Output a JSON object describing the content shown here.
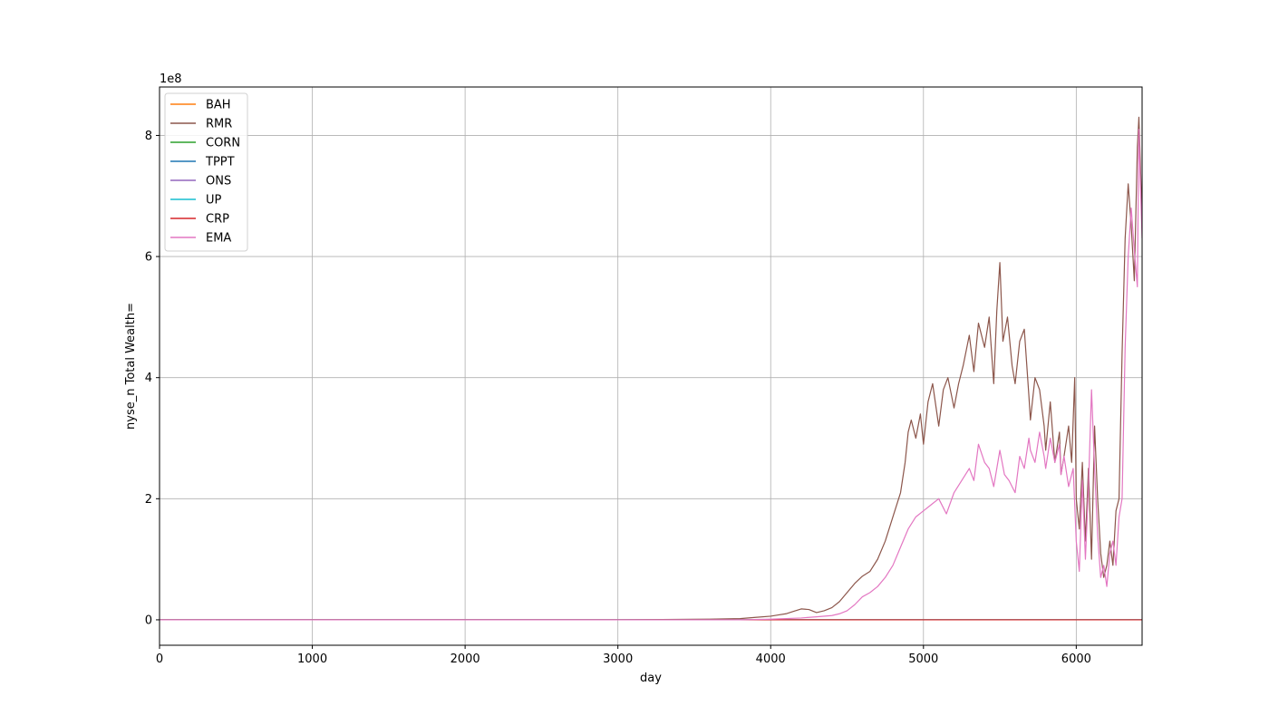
{
  "chart_data": {
    "type": "line",
    "title": "",
    "xlabel": "day",
    "ylabel": "nyse_n Total Wealth=",
    "y_multiplier_label": "1e8",
    "xlim": [
      0,
      6431
    ],
    "ylim": [
      -0.42,
      8.8
    ],
    "x_ticks": [
      0,
      1000,
      2000,
      3000,
      4000,
      5000,
      6000
    ],
    "y_ticks": [
      0,
      2,
      4,
      6,
      8
    ],
    "grid": true,
    "legend_position": "upper-left",
    "series": [
      {
        "name": "BAH",
        "color": "#ff7f0e",
        "x": [
          0,
          6431
        ],
        "y": [
          0,
          0
        ]
      },
      {
        "name": "RMR",
        "color": "#8c564b",
        "x": [
          0,
          1000,
          2000,
          3000,
          3600,
          3800,
          3900,
          4000,
          4050,
          4100,
          4150,
          4200,
          4250,
          4300,
          4350,
          4400,
          4450,
          4500,
          4550,
          4600,
          4650,
          4700,
          4750,
          4800,
          4850,
          4880,
          4900,
          4920,
          4950,
          4980,
          5000,
          5030,
          5060,
          5100,
          5130,
          5160,
          5200,
          5230,
          5260,
          5300,
          5330,
          5360,
          5400,
          5430,
          5460,
          5480,
          5500,
          5520,
          5550,
          5580,
          5600,
          5630,
          5660,
          5690,
          5700,
          5730,
          5760,
          5790,
          5800,
          5830,
          5860,
          5890,
          5900,
          5920,
          5950,
          5970,
          5990,
          6000,
          6020,
          6040,
          6060,
          6080,
          6100,
          6120,
          6140,
          6160,
          6180,
          6200,
          6220,
          6240,
          6260,
          6280,
          6300,
          6320,
          6340,
          6360,
          6380,
          6400,
          6410,
          6420,
          6431
        ],
        "y": [
          0,
          0,
          0,
          0,
          0.01,
          0.02,
          0.04,
          0.06,
          0.08,
          0.1,
          0.14,
          0.18,
          0.17,
          0.12,
          0.15,
          0.2,
          0.3,
          0.45,
          0.6,
          0.72,
          0.8,
          1.0,
          1.3,
          1.7,
          2.1,
          2.6,
          3.1,
          3.3,
          3.0,
          3.4,
          2.9,
          3.6,
          3.9,
          3.2,
          3.8,
          4.0,
          3.5,
          3.9,
          4.2,
          4.7,
          4.1,
          4.9,
          4.5,
          5.0,
          3.9,
          5.1,
          5.9,
          4.6,
          5.0,
          4.2,
          3.9,
          4.6,
          4.8,
          3.7,
          3.3,
          4.0,
          3.8,
          3.2,
          2.8,
          3.6,
          2.6,
          3.1,
          2.4,
          2.7,
          3.2,
          2.6,
          4.0,
          2.0,
          1.5,
          2.6,
          1.3,
          2.5,
          1.0,
          3.2,
          2.0,
          1.1,
          0.7,
          0.9,
          1.3,
          0.9,
          1.8,
          2.0,
          4.4,
          6.3,
          7.2,
          6.5,
          5.6,
          7.8,
          8.3,
          7.5,
          6.6
        ]
      },
      {
        "name": "CORN",
        "color": "#2ca02c",
        "x": [
          0,
          6431
        ],
        "y": [
          0,
          0
        ]
      },
      {
        "name": "TPPT",
        "color": "#1f77b4",
        "x": [
          0,
          6431
        ],
        "y": [
          0,
          0
        ]
      },
      {
        "name": "ONS",
        "color": "#9467bd",
        "x": [
          0,
          6431
        ],
        "y": [
          0,
          0
        ]
      },
      {
        "name": "UP",
        "color": "#17becf",
        "x": [
          0,
          6431
        ],
        "y": [
          0,
          0
        ]
      },
      {
        "name": "CRP",
        "color": "#d62728",
        "x": [
          0,
          6431
        ],
        "y": [
          0,
          0
        ]
      },
      {
        "name": "EMA",
        "color": "#e377c2",
        "x": [
          0,
          1000,
          2000,
          3000,
          3800,
          4000,
          4200,
          4300,
          4400,
          4450,
          4500,
          4550,
          4600,
          4650,
          4700,
          4750,
          4800,
          4850,
          4900,
          4950,
          5000,
          5050,
          5100,
          5150,
          5200,
          5250,
          5300,
          5330,
          5360,
          5400,
          5430,
          5460,
          5500,
          5530,
          5560,
          5600,
          5630,
          5660,
          5690,
          5700,
          5730,
          5760,
          5790,
          5800,
          5830,
          5860,
          5890,
          5900,
          5920,
          5950,
          5980,
          6000,
          6020,
          6040,
          6060,
          6080,
          6100,
          6120,
          6140,
          6160,
          6180,
          6200,
          6220,
          6240,
          6260,
          6280,
          6300,
          6320,
          6340,
          6360,
          6380,
          6400,
          6410,
          6420,
          6431
        ],
        "y": [
          0,
          0,
          0,
          0,
          0,
          0.01,
          0.03,
          0.05,
          0.07,
          0.1,
          0.15,
          0.25,
          0.38,
          0.45,
          0.55,
          0.7,
          0.9,
          1.2,
          1.5,
          1.7,
          1.8,
          1.9,
          2.0,
          1.75,
          2.1,
          2.3,
          2.5,
          2.3,
          2.9,
          2.6,
          2.5,
          2.2,
          2.8,
          2.4,
          2.3,
          2.1,
          2.7,
          2.5,
          3.0,
          2.8,
          2.6,
          3.1,
          2.7,
          2.5,
          3.0,
          2.6,
          2.9,
          2.4,
          2.7,
          2.2,
          2.5,
          1.3,
          0.8,
          2.3,
          1.0,
          2.2,
          3.8,
          2.5,
          1.4,
          0.7,
          0.9,
          0.55,
          1.1,
          1.3,
          0.9,
          1.7,
          2.0,
          4.5,
          6.0,
          6.8,
          6.1,
          5.5,
          8.1,
          7.2,
          6.3
        ]
      }
    ]
  }
}
